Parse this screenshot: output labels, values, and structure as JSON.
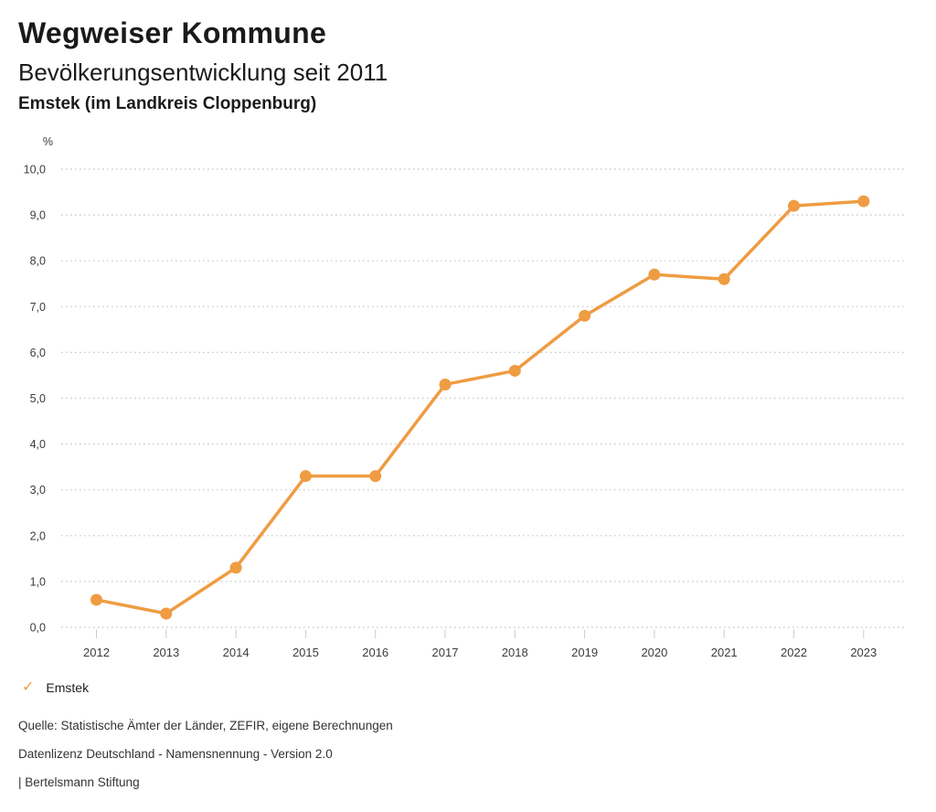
{
  "header": {
    "title": "Wegweiser Kommune",
    "subtitle": "Bevölkerungsentwicklung seit 2011",
    "region": "Emstek (im Landkreis Cloppenburg)"
  },
  "chart_data": {
    "type": "line",
    "title": "Bevölkerungsentwicklung seit 2011",
    "subtitle": "Emstek (im Landkreis Cloppenburg)",
    "unit_label": "%",
    "categories": [
      "2012",
      "2013",
      "2014",
      "2015",
      "2016",
      "2017",
      "2018",
      "2019",
      "2020",
      "2021",
      "2022",
      "2023"
    ],
    "series": [
      {
        "name": "Emstek",
        "values": [
          0.6,
          0.3,
          1.3,
          3.3,
          3.3,
          5.3,
          5.6,
          6.8,
          7.7,
          7.6,
          9.2,
          9.3
        ],
        "color": "#EF9C42",
        "marker": "circle"
      }
    ],
    "ylim": [
      0,
      10
    ],
    "ytick_step": 1.0,
    "ytick_labels": [
      "0,0",
      "1,0",
      "2,0",
      "3,0",
      "4,0",
      "5,0",
      "6,0",
      "7,0",
      "8,0",
      "9,0",
      "10,0"
    ],
    "grid": "horizontal-dotted",
    "legend_position": "bottom-left"
  },
  "legend": {
    "check_icon": "✓",
    "label": "Emstek"
  },
  "footer": {
    "source": "Quelle: Statistische Ämter der Länder, ZEFIR, eigene Berechnungen",
    "license": "Datenlizenz Deutschland - Namensnennung - Version 2.0",
    "attribution": "| Bertelsmann Stiftung"
  },
  "colors": {
    "accent": "#EF9C42",
    "grid": "#c4c4c4",
    "tick": "#cccccc",
    "axis_text": "#3c3c3c",
    "text": "#1a1a1a",
    "muted_text": "#333333"
  }
}
